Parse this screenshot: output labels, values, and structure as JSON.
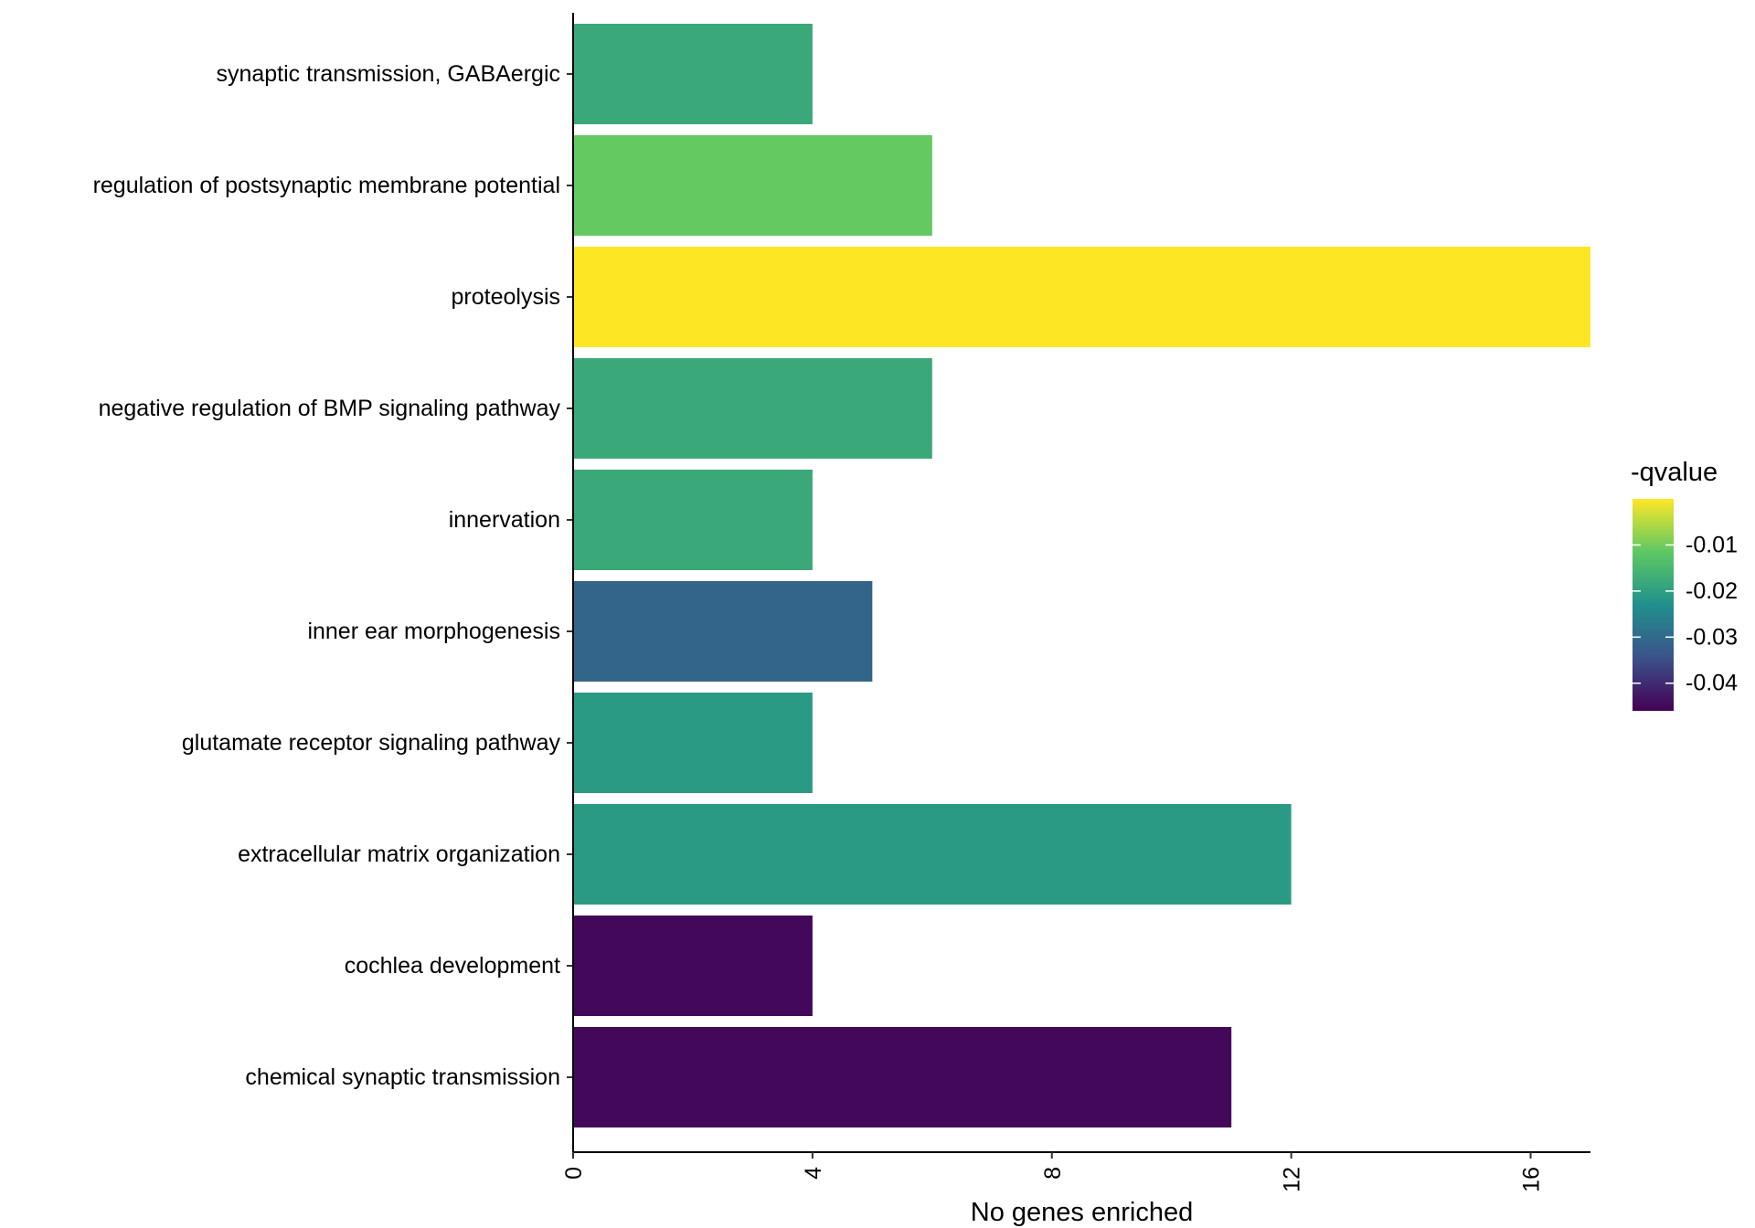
{
  "chart_data": {
    "type": "bar",
    "orientation": "horizontal",
    "categories": [
      "synaptic transmission, GABAergic",
      "regulation of postsynaptic membrane potential",
      "proteolysis",
      "negative regulation of BMP signaling pathway",
      "innervation",
      "inner ear morphogenesis",
      "glutamate receptor signaling pathway",
      "extracellular matrix organization",
      "cochlea development",
      "chemical synaptic transmission"
    ],
    "values": [
      4,
      6,
      17,
      6,
      4,
      5,
      4,
      12,
      4,
      11
    ],
    "color_values": [
      -0.018,
      -0.011,
      0.0,
      -0.018,
      -0.018,
      -0.031,
      -0.021,
      -0.021,
      -0.045,
      -0.045
    ],
    "xlabel": "No genes enriched",
    "ylabel": "",
    "xlim": [
      0,
      17
    ],
    "xticks": [
      0,
      4,
      8,
      12,
      16
    ],
    "x_tick_labels": [
      "0",
      "4",
      "8",
      "12",
      "16"
    ],
    "grid": false,
    "legend": {
      "title": "-qvalue",
      "placement": "right",
      "type": "colorbar",
      "range": [
        -0.046,
        0.0
      ],
      "ticks": [
        -0.01,
        -0.02,
        -0.03,
        -0.04
      ],
      "tick_labels": [
        "-0.01",
        "-0.02",
        "-0.03",
        "-0.04"
      ]
    },
    "colorscale": [
      "#440154",
      "#3B528B",
      "#21908C",
      "#5DC863",
      "#FDE725"
    ]
  }
}
